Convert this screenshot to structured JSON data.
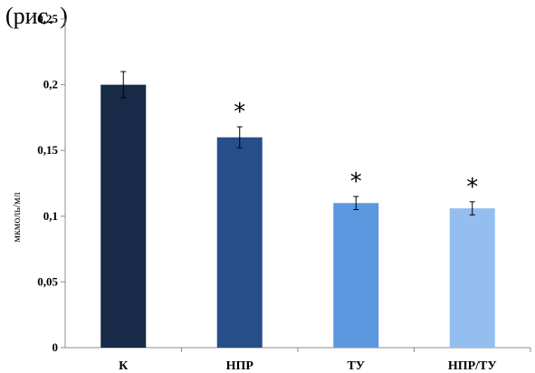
{
  "header_fragment": "(рис. )",
  "chart_data": {
    "type": "bar",
    "title": "",
    "xlabel": "",
    "ylabel": "мкмоль/мл",
    "categories": [
      "К",
      "НПР",
      "ТУ",
      "НПР/ТУ"
    ],
    "values": [
      0.2,
      0.16,
      0.11,
      0.106
    ],
    "errors": [
      0.01,
      0.008,
      0.005,
      0.005
    ],
    "significance": [
      "",
      "*",
      "*",
      "*"
    ],
    "colors": [
      "#172b48",
      "#264f8a",
      "#5b98e0",
      "#95bef0"
    ],
    "ylim": [
      0,
      0.25
    ],
    "yticks": [
      0,
      0.05,
      0.1,
      0.15,
      0.2,
      0.25
    ],
    "ytick_labels": [
      "0",
      "0,05",
      "0,1",
      "0,15",
      "0,2",
      "0,25"
    ],
    "grid": false
  }
}
